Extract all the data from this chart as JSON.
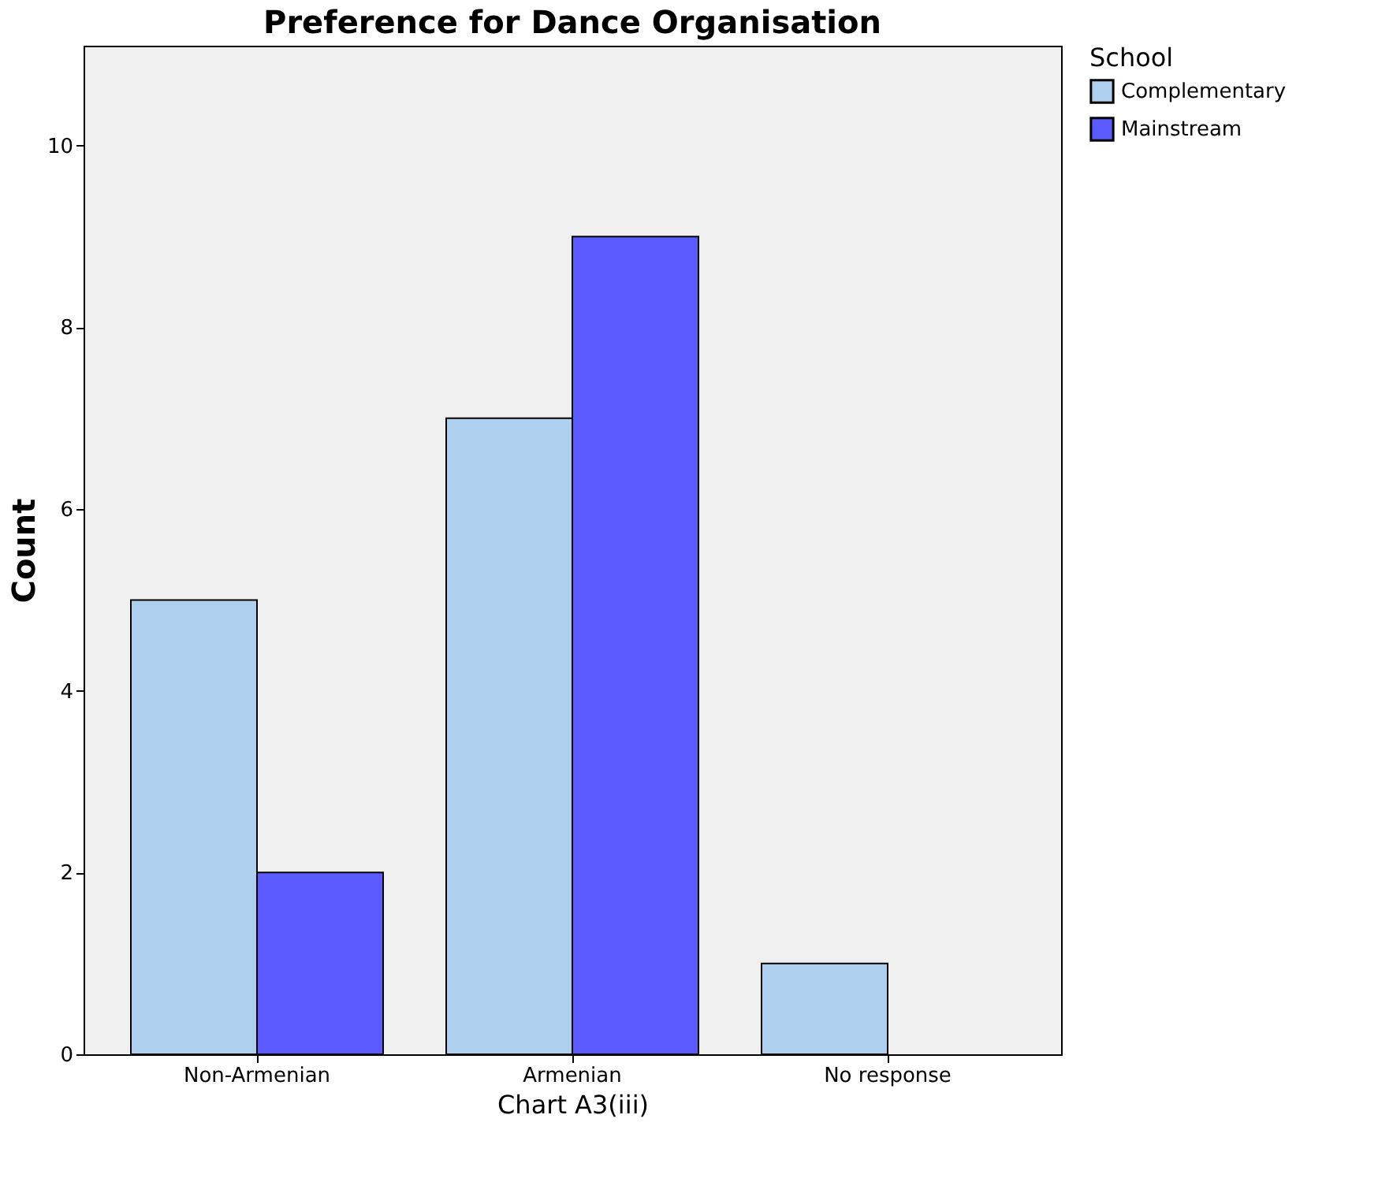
{
  "chart_data": {
    "type": "bar",
    "title": "Preference for Dance Organisation",
    "xlabel": "Chart A3(iii)",
    "ylabel": "Count",
    "legend_title": "School",
    "categories": [
      "Non-Armenian",
      "Armenian",
      "No response"
    ],
    "series": [
      {
        "name": "Complementary",
        "color": "#aecfee",
        "values": [
          5,
          7,
          1
        ]
      },
      {
        "name": "Mainstream",
        "color": "#5b5bff",
        "values": [
          2,
          9,
          null
        ]
      }
    ],
    "ylim": [
      0,
      11.1
    ],
    "yticks": [
      0,
      2,
      4,
      6,
      8,
      10
    ],
    "grid": false,
    "legend": "top right"
  }
}
